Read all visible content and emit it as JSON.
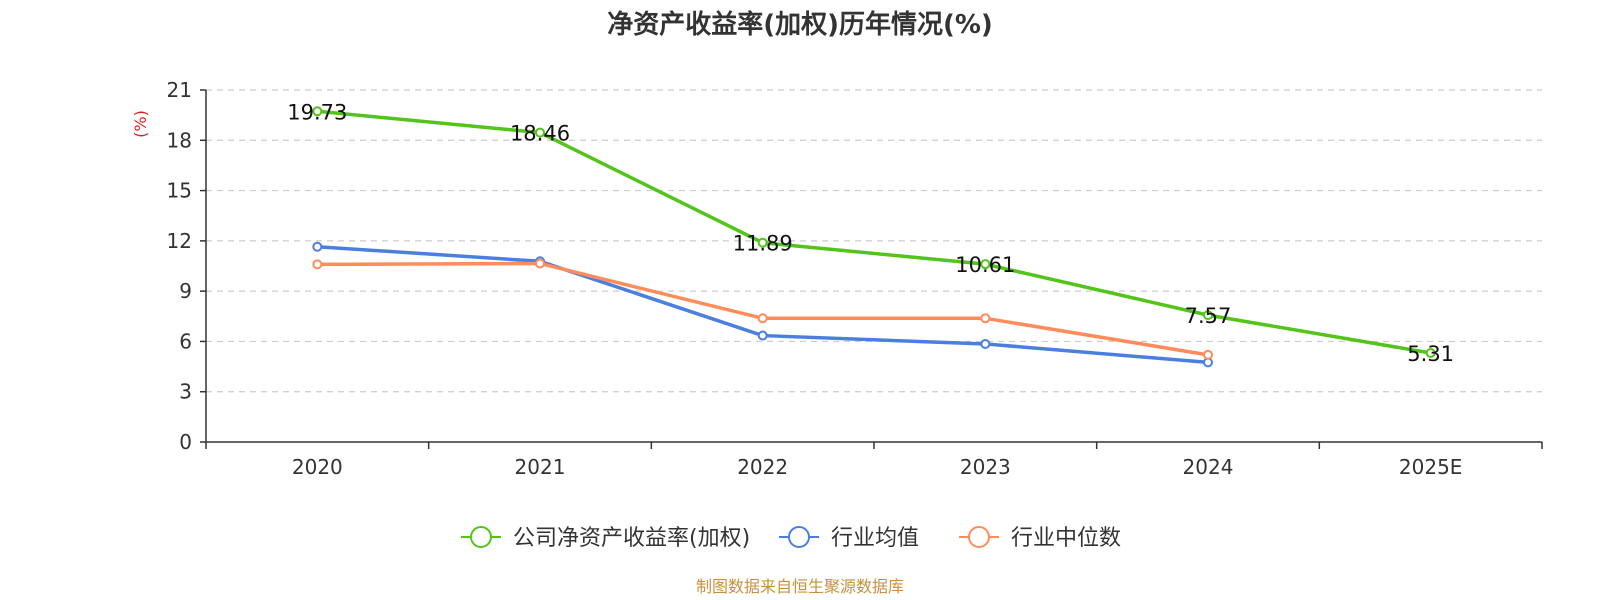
{
  "chart_data": {
    "type": "line",
    "title": "净资产收益率(加权)历年情况(%)",
    "ylabel": "(%)",
    "xlabel": "",
    "categories": [
      "2020",
      "2021",
      "2022",
      "2023",
      "2024",
      "2025E"
    ],
    "ylim": [
      0,
      21
    ],
    "yticks": [
      0,
      3,
      6,
      9,
      12,
      15,
      18,
      21
    ],
    "grid": true,
    "legend_position": "bottom",
    "series": [
      {
        "name": "公司净资产收益率(加权)",
        "color": "#52c41a",
        "values": [
          19.73,
          18.46,
          11.89,
          10.61,
          7.57,
          5.31
        ],
        "labels": [
          "19.73",
          "18.46",
          "11.89",
          "10.61",
          "7.57",
          "5.31"
        ]
      },
      {
        "name": "行业均值",
        "color": "#4a7fe0",
        "values": [
          11.65,
          10.78,
          6.35,
          5.85,
          4.75,
          null
        ]
      },
      {
        "name": "行业中位数",
        "color": "#ff8c5a",
        "values": [
          10.6,
          10.65,
          7.38,
          7.38,
          5.2,
          null
        ]
      }
    ]
  },
  "footer": {
    "text": "制图数据来自恒生聚源数据库",
    "color": "#c8923c"
  },
  "colors": {
    "ylabel": "#e02020",
    "grid": "#cccccc",
    "axis": "#333333"
  }
}
